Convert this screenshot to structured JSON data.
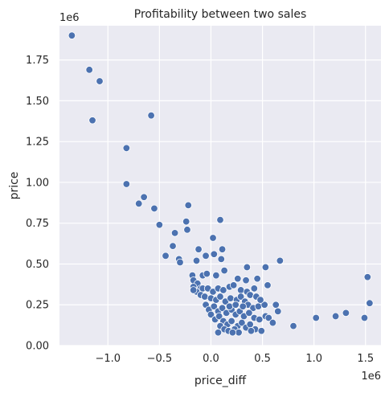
{
  "chart_data": {
    "type": "scatter",
    "title": "Profitability between two sales",
    "xlabel": "price_diff",
    "ylabel": "price",
    "x_offset_label": "1e6",
    "y_offset_label": "1e6",
    "xlim": [
      -1.47,
      1.65
    ],
    "ylim": [
      0,
      1.96
    ],
    "xticks": [
      -1.0,
      -0.5,
      0.0,
      0.5,
      1.0,
      1.5
    ],
    "xtick_labels": [
      "−1.0",
      "−0.5",
      "0.0",
      "0.5",
      "1.0",
      "1.5"
    ],
    "yticks": [
      0.0,
      0.25,
      0.5,
      0.75,
      1.0,
      1.25,
      1.5,
      1.75
    ],
    "ytick_labels": [
      "0.00",
      "0.25",
      "0.50",
      "0.75",
      "1.00",
      "1.25",
      "1.50",
      "1.75"
    ],
    "grid": true,
    "colors": {
      "background": "#EAEAF2",
      "grid": "#FFFFFF",
      "point": "#4C72B0",
      "point_edge": "#FFFFFF"
    },
    "series": [
      {
        "points": [
          [
            -1.35,
            1.9
          ],
          [
            -1.18,
            1.69
          ],
          [
            -1.08,
            1.62
          ],
          [
            -1.15,
            1.38
          ],
          [
            -0.58,
            1.41
          ],
          [
            -0.82,
            1.21
          ],
          [
            -0.82,
            0.99
          ],
          [
            -0.65,
            0.91
          ],
          [
            -0.7,
            0.87
          ],
          [
            -0.55,
            0.84
          ],
          [
            -0.22,
            0.86
          ],
          [
            0.09,
            0.77
          ],
          [
            -0.5,
            0.74
          ],
          [
            -0.24,
            0.76
          ],
          [
            -0.35,
            0.69
          ],
          [
            -0.23,
            0.71
          ],
          [
            0.02,
            0.66
          ],
          [
            -0.37,
            0.61
          ],
          [
            -0.44,
            0.55
          ],
          [
            -0.31,
            0.53
          ],
          [
            -0.3,
            0.51
          ],
          [
            -0.12,
            0.59
          ],
          [
            0.11,
            0.59
          ],
          [
            -0.05,
            0.55
          ],
          [
            0.03,
            0.56
          ],
          [
            -0.14,
            0.52
          ],
          [
            0.1,
            0.53
          ],
          [
            0.35,
            0.48
          ],
          [
            0.53,
            0.48
          ],
          [
            0.67,
            0.52
          ],
          [
            -0.18,
            0.43
          ],
          [
            -0.08,
            0.43
          ],
          [
            -0.04,
            0.44
          ],
          [
            0.05,
            0.43
          ],
          [
            0.13,
            0.46
          ],
          [
            0.26,
            0.41
          ],
          [
            0.34,
            0.4
          ],
          [
            0.45,
            0.41
          ],
          [
            0.55,
            0.37
          ],
          [
            -0.17,
            0.4
          ],
          [
            -0.13,
            0.38
          ],
          [
            -0.1,
            0.35
          ],
          [
            -0.17,
            0.36
          ],
          [
            -0.14,
            0.33
          ],
          [
            -0.08,
            0.35
          ],
          [
            -0.03,
            0.35
          ],
          [
            0.02,
            0.33
          ],
          [
            0.07,
            0.35
          ],
          [
            0.12,
            0.34
          ],
          [
            0.18,
            0.36
          ],
          [
            0.22,
            0.37
          ],
          [
            0.29,
            0.34
          ],
          [
            0.35,
            0.33
          ],
          [
            0.38,
            0.31
          ],
          [
            0.42,
            0.35
          ],
          [
            -0.17,
            0.34
          ],
          [
            -0.1,
            0.31
          ],
          [
            -0.06,
            0.3
          ],
          [
            0.0,
            0.29
          ],
          [
            0.05,
            0.28
          ],
          [
            0.09,
            0.3
          ],
          [
            0.14,
            0.27
          ],
          [
            0.19,
            0.29
          ],
          [
            0.25,
            0.28
          ],
          [
            0.29,
            0.3
          ],
          [
            0.33,
            0.27
          ],
          [
            0.36,
            0.25
          ],
          [
            0.41,
            0.23
          ],
          [
            0.46,
            0.24
          ],
          [
            0.52,
            0.25
          ],
          [
            0.63,
            0.25
          ],
          [
            -0.05,
            0.25
          ],
          [
            -0.02,
            0.22
          ],
          [
            0.03,
            0.24
          ],
          [
            0.07,
            0.21
          ],
          [
            0.11,
            0.23
          ],
          [
            0.15,
            0.2
          ],
          [
            0.2,
            0.22
          ],
          [
            0.24,
            0.19
          ],
          [
            0.28,
            0.21
          ],
          [
            0.32,
            0.18
          ],
          [
            0.37,
            0.2
          ],
          [
            0.42,
            0.17
          ],
          [
            0.47,
            0.16
          ],
          [
            0.53,
            0.18
          ],
          [
            0.56,
            0.17
          ],
          [
            0.6,
            0.14
          ],
          [
            0.65,
            0.21
          ],
          [
            0.0,
            0.19
          ],
          [
            0.04,
            0.16
          ],
          [
            0.08,
            0.18
          ],
          [
            0.12,
            0.15
          ],
          [
            0.16,
            0.13
          ],
          [
            0.2,
            0.15
          ],
          [
            0.26,
            0.12
          ],
          [
            0.3,
            0.14
          ],
          [
            0.34,
            0.11
          ],
          [
            0.38,
            0.13
          ],
          [
            0.43,
            0.1
          ],
          [
            0.09,
            0.12
          ],
          [
            0.13,
            0.1
          ],
          [
            0.17,
            0.09
          ],
          [
            0.23,
            0.1
          ],
          [
            0.27,
            0.08
          ],
          [
            0.39,
            0.09
          ],
          [
            0.49,
            0.09
          ],
          [
            0.8,
            0.12
          ],
          [
            1.02,
            0.17
          ],
          [
            1.21,
            0.18
          ],
          [
            1.31,
            0.2
          ],
          [
            1.49,
            0.17
          ],
          [
            1.52,
            0.42
          ],
          [
            1.54,
            0.26
          ],
          [
            0.07,
            0.08
          ],
          [
            0.21,
            0.08
          ],
          [
            0.44,
            0.3
          ],
          [
            0.48,
            0.28
          ],
          [
            0.18,
            0.24
          ],
          [
            0.31,
            0.24
          ],
          [
            0.24,
            0.25
          ]
        ]
      }
    ]
  }
}
